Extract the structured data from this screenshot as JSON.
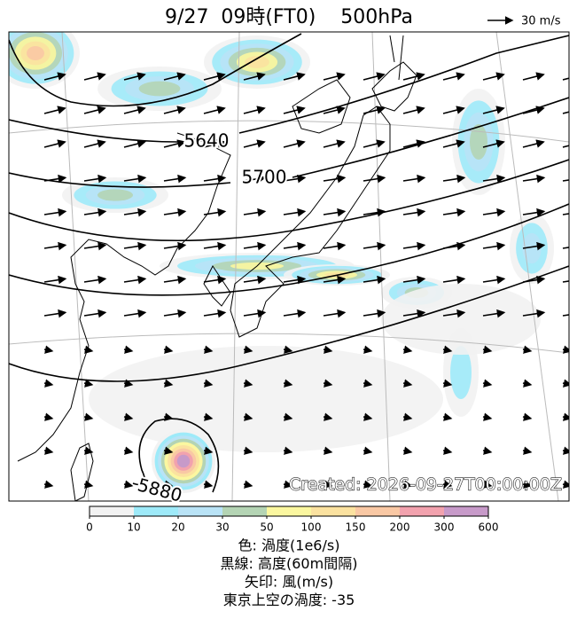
{
  "header": {
    "title": "9/27  09時(FT0)    500hPa",
    "scale_label": "30 m/s"
  },
  "map": {
    "contour_labels": [
      "5640",
      "5700",
      "5880"
    ],
    "credit": "Created: 2026-09-27T00:00:00Z"
  },
  "colorbar": {
    "ticks": [
      0,
      10,
      20,
      30,
      50,
      100,
      150,
      200,
      300,
      600
    ],
    "colors": [
      "#f2f2f2",
      "#9eeaf9",
      "#b9e3f6",
      "#b4d4b4",
      "#fbf7a0",
      "#fbe2a0",
      "#f9c8a4",
      "#f2a2ae",
      "#c79ac9"
    ]
  },
  "legend": [
    "色: 渦度(1e6/s)",
    "黒線: 高度(60m間隔)",
    "矢印: 風(m/s)",
    "東京上空の渦度: -35"
  ]
}
